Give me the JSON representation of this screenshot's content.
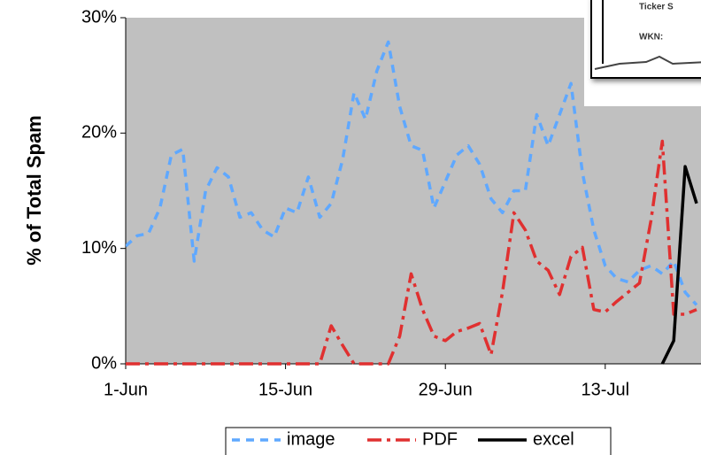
{
  "chart_data": {
    "type": "line",
    "y_label": "% of Total Spam",
    "categories": [
      "1-Jun",
      null,
      null,
      null,
      null,
      null,
      null,
      null,
      null,
      null,
      null,
      null,
      null,
      null,
      "15-Jun",
      null,
      null,
      null,
      null,
      null,
      null,
      null,
      null,
      null,
      null,
      null,
      null,
      null,
      "29-Jun",
      null,
      null,
      null,
      null,
      null,
      null,
      null,
      null,
      null,
      null,
      null,
      null,
      null,
      "13-Jul",
      null,
      null,
      null,
      null,
      null,
      null,
      null,
      null
    ],
    "ylim": [
      0,
      30
    ],
    "yticks": [
      {
        "value": 0,
        "label": "0%"
      },
      {
        "value": 10,
        "label": "10%"
      },
      {
        "value": 20,
        "label": "20%"
      },
      {
        "value": 30,
        "label": "30%"
      }
    ],
    "series": [
      {
        "name": "image",
        "color": "#5fa8ff",
        "style": "dashed",
        "values": [
          10.2,
          11.1,
          11.3,
          13.5,
          18.1,
          18.6,
          8.9,
          15,
          17,
          16.2,
          12.7,
          13.1,
          11.6,
          11,
          13.5,
          13.1,
          16.2,
          12.7,
          13.9,
          17.7,
          23.5,
          21.2,
          25.4,
          27.9,
          22.3,
          18.9,
          18.5,
          13.5,
          15.8,
          18.1,
          18.9,
          17.3,
          14.3,
          13.1,
          15,
          15,
          21.6,
          18.9,
          21.6,
          24.3,
          16.6,
          11.6,
          8.5,
          7.4,
          7.1,
          8.1,
          8.5,
          7.8,
          8.9,
          6.2,
          5.1
        ]
      },
      {
        "name": "PDF",
        "color": "#e03030",
        "style": "dashdot",
        "values": [
          0,
          0,
          0,
          0,
          0,
          0,
          0,
          0,
          0,
          0,
          0,
          0,
          0,
          0,
          0,
          0,
          0,
          0,
          3.3,
          1.6,
          0,
          0,
          0,
          0,
          2.4,
          7.8,
          4.7,
          2.4,
          2,
          2.8,
          3.1,
          3.5,
          0.8,
          6.2,
          13.1,
          11.6,
          8.9,
          8.1,
          6,
          9.3,
          10.1,
          4.7,
          4.5,
          5.4,
          6.2,
          7,
          12.4,
          19.3,
          4.3,
          4.3,
          4.7
        ]
      },
      {
        "name": "excel",
        "color": "#000000",
        "style": "solid",
        "values": [
          null,
          null,
          null,
          null,
          null,
          null,
          null,
          null,
          null,
          null,
          null,
          null,
          null,
          null,
          null,
          null,
          null,
          null,
          null,
          null,
          null,
          null,
          null,
          null,
          null,
          null,
          null,
          null,
          null,
          null,
          null,
          null,
          null,
          null,
          null,
          null,
          null,
          null,
          null,
          null,
          null,
          null,
          null,
          null,
          null,
          null,
          null,
          0,
          2,
          17.1,
          13.9
        ]
      }
    ],
    "plot_background": "#c0c0c0",
    "legend": "bottom"
  },
  "inset": {
    "lines": [
      "Ticker S",
      "WKN:"
    ]
  }
}
